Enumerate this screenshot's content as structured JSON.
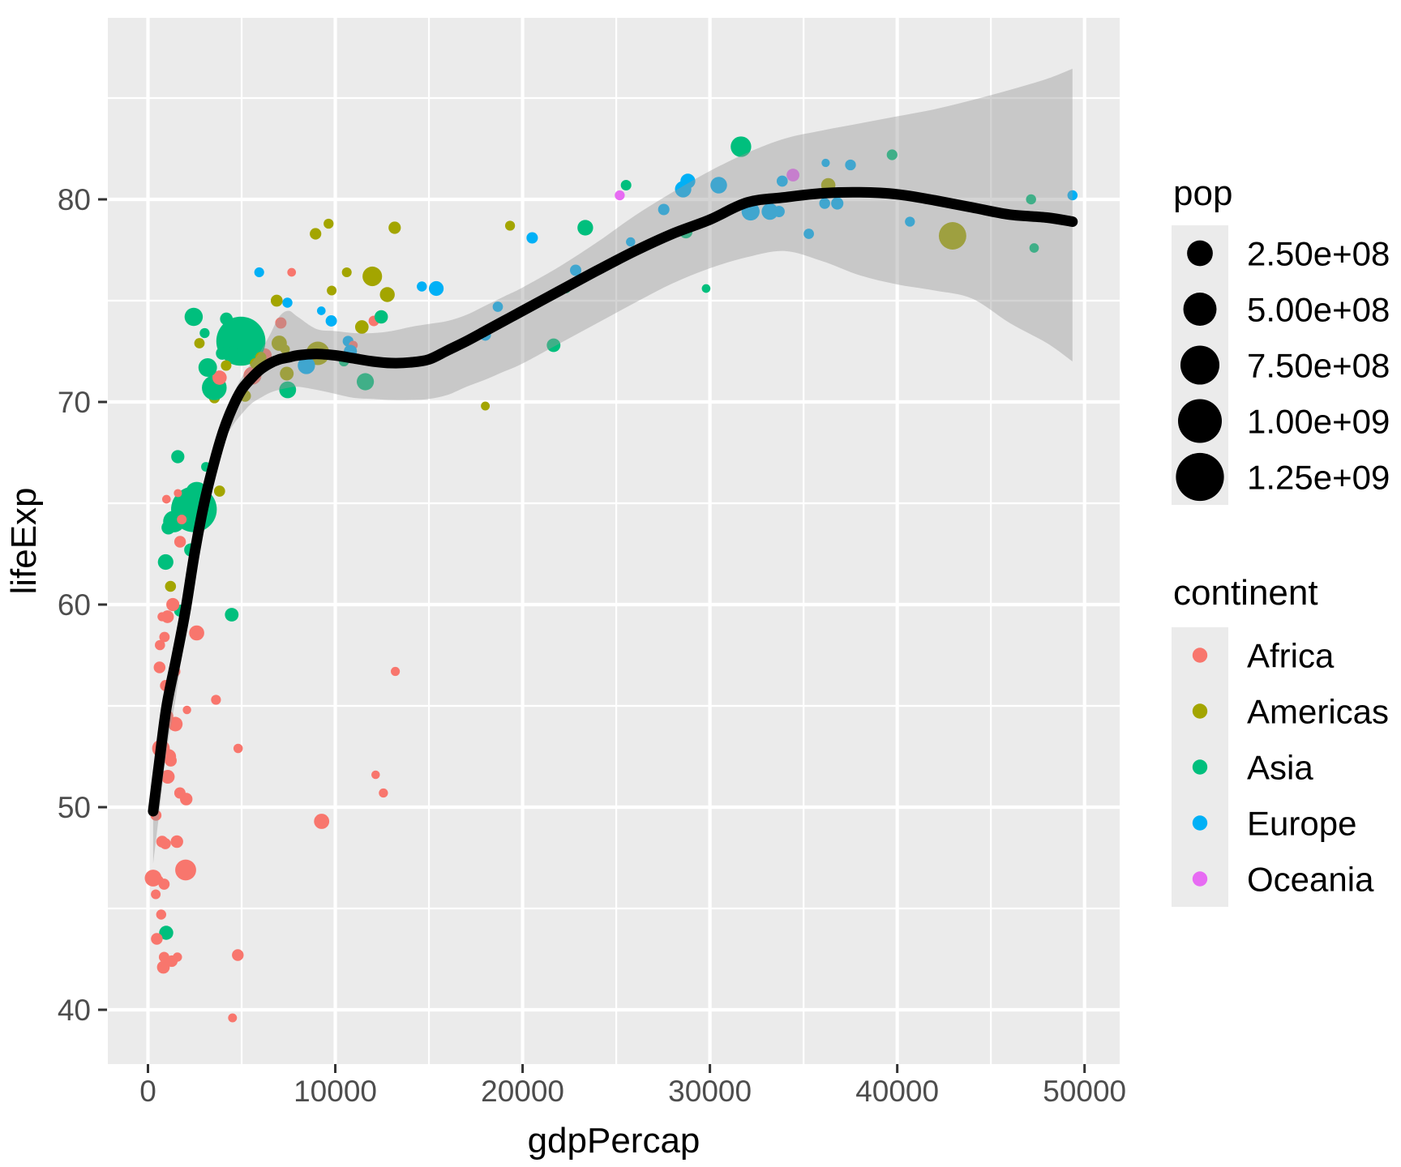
{
  "axes": {
    "x": {
      "title": "gdpPercap",
      "ticks": [
        0,
        10000,
        20000,
        30000,
        40000,
        50000
      ],
      "tick_labels": [
        "0",
        "10000",
        "20000",
        "30000",
        "40000",
        "50000"
      ],
      "minor": [
        5000,
        15000,
        25000,
        35000,
        45000
      ]
    },
    "y": {
      "title": "lifeExp",
      "ticks": [
        40,
        50,
        60,
        70,
        80
      ],
      "tick_labels": [
        "40",
        "50",
        "60",
        "70",
        "80"
      ],
      "minor": [
        45,
        55,
        65,
        75,
        85
      ]
    }
  },
  "legend": {
    "size": {
      "title": "pop",
      "entries": [
        {
          "label": "2.50e+08",
          "value": 250000000
        },
        {
          "label": "5.00e+08",
          "value": 500000000
        },
        {
          "label": "7.50e+08",
          "value": 750000000
        },
        {
          "label": "1.00e+09",
          "value": 1000000000
        },
        {
          "label": "1.25e+09",
          "value": 1250000000
        }
      ]
    },
    "color": {
      "title": "continent",
      "entries": [
        {
          "label": "Africa",
          "color": "#F8766D"
        },
        {
          "label": "Americas",
          "color": "#A3A500"
        },
        {
          "label": "Asia",
          "color": "#00BF7D"
        },
        {
          "label": "Europe",
          "color": "#00B0F6"
        },
        {
          "label": "Oceania",
          "color": "#E76BF3"
        }
      ]
    }
  },
  "style": {
    "panel_fill": "#EBEBEB",
    "grid_color": "#FFFFFF",
    "key_fill": "#EBEBEB",
    "tick_text_color": "#4D4D4D",
    "title_color": "#000000",
    "tick_mark_color": "#333333",
    "ribbon_color": "#999999",
    "ribbon_alpha": 0.42,
    "smooth_color": "#000000"
  },
  "chart_data": {
    "type": "scatter",
    "title": "",
    "xlabel": "gdpPercap",
    "ylabel": "lifeExp",
    "xlim": [
      -2143,
      51883
    ],
    "ylim": [
      37.3,
      89.0
    ],
    "grid": true,
    "legend_position": "right",
    "size_aesthetic": "pop",
    "color_aesthetic": "continent",
    "continents": [
      "Africa",
      "Americas",
      "Asia",
      "Europe",
      "Oceania"
    ],
    "continent_colors": [
      "#F8766D",
      "#A3A500",
      "#00BF7D",
      "#00B0F6",
      "#E76BF3"
    ],
    "point_fields": [
      "gdpPercap",
      "lifeExp",
      "pop_millions",
      "continent_index"
    ],
    "points": [
      [
        975,
        43.8,
        31.89,
        2
      ],
      [
        5937,
        76.4,
        3.6,
        3
      ],
      [
        6223,
        72.3,
        33.33,
        0
      ],
      [
        4797,
        42.7,
        12.42,
        0
      ],
      [
        12779,
        75.3,
        40.3,
        1
      ],
      [
        34435,
        81.2,
        20.43,
        4
      ],
      [
        36126,
        79.8,
        8.2,
        3
      ],
      [
        29796,
        75.6,
        0.71,
        2
      ],
      [
        1391,
        64.1,
        150.45,
        2
      ],
      [
        33693,
        79.4,
        10.39,
        3
      ],
      [
        1441,
        56.7,
        8.08,
        0
      ],
      [
        3822,
        65.6,
        9.12,
        1
      ],
      [
        7446,
        74.9,
        4.55,
        3
      ],
      [
        12570,
        50.7,
        1.64,
        0
      ],
      [
        9066,
        72.4,
        190.01,
        1
      ],
      [
        10681,
        73.0,
        7.32,
        3
      ],
      [
        1217,
        52.3,
        14.33,
        0
      ],
      [
        430,
        49.6,
        8.39,
        0
      ],
      [
        1714,
        59.7,
        14.13,
        2
      ],
      [
        2042,
        50.4,
        17.7,
        0
      ],
      [
        36319,
        80.7,
        33.39,
        1
      ],
      [
        706,
        44.7,
        4.37,
        0
      ],
      [
        1704,
        50.7,
        10.24,
        0
      ],
      [
        13172,
        78.6,
        16.28,
        1
      ],
      [
        4959,
        73.0,
        1318.68,
        2
      ],
      [
        7007,
        72.9,
        44.23,
        1
      ],
      [
        986,
        65.2,
        0.71,
        0
      ],
      [
        278,
        46.5,
        64.61,
        0
      ],
      [
        3633,
        55.3,
        3.8,
        0
      ],
      [
        9645,
        78.8,
        4.13,
        1
      ],
      [
        1545,
        48.3,
        18.01,
        0
      ],
      [
        14619,
        75.7,
        4.49,
        3
      ],
      [
        8948,
        78.3,
        11.42,
        1
      ],
      [
        22833,
        76.5,
        10.23,
        3
      ],
      [
        35278,
        78.3,
        5.47,
        3
      ],
      [
        2082,
        54.8,
        0.5,
        0
      ],
      [
        6025,
        72.2,
        9.32,
        1
      ],
      [
        6873,
        75.0,
        13.76,
        1
      ],
      [
        5581,
        71.3,
        80.26,
        0
      ],
      [
        5728,
        71.9,
        6.94,
        1
      ],
      [
        12154,
        51.6,
        0.55,
        0
      ],
      [
        641,
        58.0,
        4.91,
        0
      ],
      [
        691,
        52.9,
        76.51,
        0
      ],
      [
        33207,
        79.3,
        5.24,
        3
      ],
      [
        30470,
        80.7,
        61.08,
        3
      ],
      [
        13206,
        56.7,
        1.45,
        0
      ],
      [
        753,
        59.4,
        1.69,
        0
      ],
      [
        32170,
        79.4,
        82.4,
        3
      ],
      [
        1328,
        60.0,
        22.87,
        0
      ],
      [
        27538,
        79.5,
        10.71,
        3
      ],
      [
        5186,
        70.3,
        12.57,
        1
      ],
      [
        943,
        56.0,
        9.95,
        0
      ],
      [
        579,
        46.4,
        1.47,
        0
      ],
      [
        1202,
        60.9,
        8.5,
        1
      ],
      [
        3548,
        70.2,
        7.48,
        1
      ],
      [
        39725,
        82.2,
        6.98,
        2
      ],
      [
        18009,
        73.3,
        9.96,
        3
      ],
      [
        36181,
        81.8,
        0.3,
        3
      ],
      [
        2452,
        64.7,
        1110.4,
        2
      ],
      [
        3541,
        70.7,
        223.55,
        2
      ],
      [
        11606,
        71.0,
        69.45,
        2
      ],
      [
        4471,
        59.5,
        27.5,
        2
      ],
      [
        40676,
        78.9,
        4.11,
        3
      ],
      [
        25523,
        80.7,
        6.43,
        2
      ],
      [
        28570,
        80.5,
        58.15,
        3
      ],
      [
        7321,
        72.6,
        2.78,
        1
      ],
      [
        31656,
        82.6,
        127.47,
        2
      ],
      [
        4519,
        72.5,
        6.05,
        2
      ],
      [
        1463,
        54.1,
        35.61,
        0
      ],
      [
        1593,
        67.3,
        23.3,
        2
      ],
      [
        23348,
        78.6,
        49.04,
        2
      ],
      [
        47307,
        77.6,
        2.51,
        2
      ],
      [
        10461,
        72.0,
        3.92,
        2
      ],
      [
        1569,
        42.6,
        2.01,
        0
      ],
      [
        415,
        45.7,
        3.19,
        0
      ],
      [
        12057,
        74.0,
        6.04,
        0
      ],
      [
        1045,
        59.4,
        19.17,
        0
      ],
      [
        759,
        48.3,
        13.33,
        0
      ],
      [
        12452,
        74.2,
        24.82,
        2
      ],
      [
        1043,
        54.5,
        12.03,
        0
      ],
      [
        1803,
        64.2,
        3.27,
        0
      ],
      [
        10957,
        72.8,
        1.25,
        0
      ],
      [
        11978,
        76.2,
        108.7,
        1
      ],
      [
        3096,
        66.8,
        2.87,
        2
      ],
      [
        9254,
        74.5,
        0.68,
        3
      ],
      [
        3820,
        71.2,
        33.76,
        0
      ],
      [
        824,
        42.1,
        19.95,
        0
      ],
      [
        944,
        62.1,
        47.76,
        2
      ],
      [
        4811,
        52.9,
        2.06,
        0
      ],
      [
        1091,
        63.8,
        28.9,
        2
      ],
      [
        36798,
        79.8,
        16.57,
        3
      ],
      [
        25185,
        80.2,
        4.12,
        4
      ],
      [
        2749,
        72.9,
        5.68,
        1
      ],
      [
        620,
        56.9,
        12.89,
        0
      ],
      [
        2014,
        46.9,
        135.03,
        0
      ],
      [
        49357,
        80.2,
        4.63,
        3
      ],
      [
        22316,
        75.6,
        3.2,
        2
      ],
      [
        2606,
        65.5,
        169.27,
        2
      ],
      [
        9809,
        75.5,
        3.24,
        1
      ],
      [
        4173,
        71.8,
        6.67,
        1
      ],
      [
        7409,
        71.4,
        28.67,
        1
      ],
      [
        3190,
        71.7,
        91.08,
        2
      ],
      [
        15390,
        75.6,
        38.52,
        3
      ],
      [
        20510,
        78.1,
        10.64,
        3
      ],
      [
        19329,
        78.7,
        3.94,
        1
      ],
      [
        7670,
        76.4,
        0.8,
        0
      ],
      [
        10808,
        72.5,
        22.28,
        3
      ],
      [
        863,
        46.2,
        8.86,
        0
      ],
      [
        1598,
        65.5,
        0.2,
        0
      ],
      [
        21655,
        72.8,
        27.6,
        2
      ],
      [
        1712,
        63.1,
        12.27,
        0
      ],
      [
        9787,
        74.0,
        10.15,
        3
      ],
      [
        863,
        42.6,
        6.14,
        0
      ],
      [
        47143,
        80.0,
        4.55,
        2
      ],
      [
        18678,
        74.7,
        5.45,
        3
      ],
      [
        25768,
        77.9,
        2.01,
        3
      ],
      [
        926,
        48.2,
        9.12,
        0
      ],
      [
        9270,
        49.3,
        44.0,
        0
      ],
      [
        28821,
        80.9,
        40.45,
        3
      ],
      [
        3970,
        72.4,
        20.38,
        2
      ],
      [
        2602,
        58.6,
        42.29,
        0
      ],
      [
        4513,
        39.6,
        1.13,
        0
      ],
      [
        33860,
        80.9,
        9.03,
        3
      ],
      [
        37506,
        81.7,
        7.55,
        3
      ],
      [
        4185,
        74.1,
        19.31,
        2
      ],
      [
        28718,
        78.4,
        23.17,
        2
      ],
      [
        1107,
        52.5,
        38.14,
        0
      ],
      [
        7458,
        70.6,
        65.07,
        2
      ],
      [
        883,
        58.4,
        5.7,
        0
      ],
      [
        18009,
        69.8,
        1.06,
        1
      ],
      [
        7093,
        73.9,
        10.28,
        0
      ],
      [
        8458,
        71.8,
        71.16,
        3
      ],
      [
        1056,
        51.5,
        29.17,
        0
      ],
      [
        33203,
        79.4,
        60.78,
        3
      ],
      [
        42952,
        78.2,
        301.14,
        1
      ],
      [
        10611,
        76.4,
        3.45,
        1
      ],
      [
        11416,
        73.7,
        26.08,
        1
      ],
      [
        2442,
        74.2,
        85.26,
        2
      ],
      [
        3025,
        73.4,
        4.02,
        2
      ],
      [
        2281,
        62.7,
        22.21,
        2
      ],
      [
        1271,
        42.4,
        11.75,
        0
      ],
      [
        470,
        43.5,
        12.31,
        0
      ]
    ],
    "smooth": {
      "x": [
        277,
        600,
        1000,
        1500,
        2000,
        2500,
        3000,
        3500,
        4000,
        4500,
        5000,
        5500,
        6000,
        6500,
        7000,
        7500,
        8000,
        9000,
        10000,
        11000,
        12000,
        13000,
        14000,
        15000,
        16000,
        17000,
        18000,
        19000,
        20000,
        22000,
        24000,
        26000,
        28000,
        30000,
        32000,
        34000,
        36000,
        38000,
        40000,
        42000,
        44000,
        46000,
        48000,
        49357
      ],
      "fit": [
        49.8,
        52.2,
        55.0,
        57.3,
        59.7,
        62.6,
        65.0,
        66.9,
        68.5,
        69.7,
        70.6,
        71.15,
        71.6,
        71.9,
        72.1,
        72.2,
        72.3,
        72.37,
        72.3,
        72.15,
        72.0,
        71.92,
        71.95,
        72.1,
        72.55,
        73.0,
        73.5,
        74.0,
        74.5,
        75.5,
        76.5,
        77.45,
        78.3,
        79.0,
        79.85,
        80.1,
        80.3,
        80.35,
        80.25,
        79.95,
        79.6,
        79.25,
        79.1,
        78.9
      ],
      "lo": [
        47.2,
        49.7,
        52.8,
        55.5,
        58.8,
        61.4,
        63.8,
        65.9,
        67.9,
        68.8,
        69.4,
        69.9,
        70.2,
        70.45,
        70.6,
        70.7,
        70.75,
        70.6,
        70.4,
        70.2,
        70.15,
        70.1,
        70.1,
        70.15,
        70.35,
        70.75,
        71.1,
        71.5,
        71.9,
        72.9,
        73.9,
        74.9,
        75.85,
        76.6,
        77.15,
        77.45,
        76.95,
        76.25,
        75.8,
        75.5,
        75.1,
        73.9,
        72.9,
        72.0
      ],
      "hi": [
        50.4,
        53.0,
        55.8,
        58.1,
        61.1,
        63.8,
        66.1,
        67.9,
        69.3,
        70.3,
        71.2,
        71.9,
        72.5,
        73.3,
        74.2,
        74.5,
        74.2,
        73.6,
        73.5,
        73.4,
        73.4,
        73.5,
        73.7,
        73.85,
        74.0,
        74.3,
        74.75,
        75.2,
        75.65,
        76.7,
        77.9,
        79.2,
        80.35,
        81.4,
        82.3,
        83.0,
        83.4,
        83.75,
        84.1,
        84.45,
        84.9,
        85.4,
        85.95,
        86.45
      ]
    }
  }
}
